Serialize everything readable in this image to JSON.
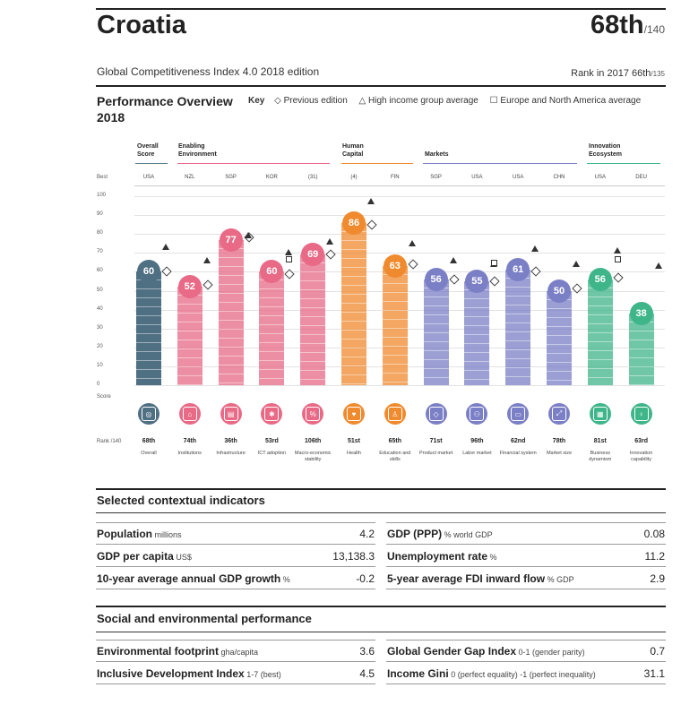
{
  "header": {
    "country": "Croatia",
    "rank": "68th",
    "rank_of": "/140",
    "edition": "Global Competitiveness Index 4.0 2018 edition",
    "prev_rank_label": "Rank in 2017 66th",
    "prev_rank_of": "/135"
  },
  "overview": {
    "title": "Performance Overview 2018",
    "key_label": "Key",
    "key_items": [
      "◇ Previous edition",
      "△ High income group average",
      "☐ Europe and North America average"
    ]
  },
  "groups": [
    {
      "label": "Overall Score",
      "color": "#5a7a8c"
    },
    {
      "label": "Enabling Environment",
      "color": "#e86a86"
    },
    {
      "label": "Human Capital",
      "color": "#f08a2e"
    },
    {
      "label": "Markets",
      "color": "#7b7fc6"
    },
    {
      "label": "Innovation Ecosystem",
      "color": "#3fb58a"
    }
  ],
  "axis": {
    "best_label": "Best",
    "score_label": "Score",
    "rank_label": "Rank /140",
    "ticks": [
      "100",
      "90",
      "80",
      "70",
      "60",
      "50",
      "40",
      "30",
      "20",
      "10",
      "0"
    ]
  },
  "chart_data": {
    "type": "bar",
    "title": "Performance Overview 2018",
    "ylim": [
      0,
      100
    ],
    "ylabel": "Score",
    "categories": [
      "Overall",
      "Institutions",
      "Infrastructure",
      "ICT adoption",
      "Macro-economic stability",
      "Health",
      "Education and skills",
      "Product market",
      "Labor market",
      "Financial system",
      "Market size",
      "Business dynamism",
      "Innovation capability"
    ],
    "best_performer": [
      "USA",
      "NZL",
      "SGP",
      "KOR",
      "(31)",
      "(4)",
      "FIN",
      "SGP",
      "USA",
      "USA",
      "CHN",
      "USA",
      "DEU"
    ],
    "values": [
      60,
      52,
      77,
      60,
      69,
      86,
      63,
      56,
      55,
      61,
      50,
      56,
      38
    ],
    "ranks": [
      "68th",
      "74th",
      "36th",
      "53rd",
      "106th",
      "51st",
      "65th",
      "71st",
      "96th",
      "62nd",
      "78th",
      "81st",
      "63rd"
    ],
    "previous_edition": [
      60,
      53,
      78,
      59,
      69,
      85,
      64,
      56,
      55,
      60,
      51,
      57,
      null
    ],
    "high_income_avg": [
      73,
      66,
      79,
      70,
      76,
      97,
      75,
      66,
      64,
      72,
      64,
      71,
      63
    ],
    "europe_na_avg": [
      null,
      null,
      null,
      67,
      null,
      null,
      null,
      null,
      65,
      null,
      null,
      67,
      null
    ],
    "colors": [
      "#4f6f83",
      "#e86a86",
      "#e86a86",
      "#e86a86",
      "#e86a86",
      "#f08a2e",
      "#f08a2e",
      "#7b7fc6",
      "#7b7fc6",
      "#7b7fc6",
      "#7b7fc6",
      "#3fb58a",
      "#3fb58a"
    ]
  },
  "context": {
    "title": "Selected contextual indicators",
    "rows": [
      {
        "l_label": "Population",
        "l_unit": "millions",
        "l_val": "4.2",
        "r_label": "GDP (PPP)",
        "r_unit": "% world GDP",
        "r_val": "0.08"
      },
      {
        "l_label": "GDP per capita",
        "l_unit": "US$",
        "l_val": "13,138.3",
        "r_label": "Unemployment rate",
        "r_unit": "%",
        "r_val": "11.2"
      },
      {
        "l_label": "10-year average annual GDP growth",
        "l_unit": "%",
        "l_val": "-0.2",
        "r_label": "5-year average FDI inward flow",
        "r_unit": "% GDP",
        "r_val": "2.9"
      }
    ]
  },
  "social": {
    "title": "Social and environmental performance",
    "rows": [
      {
        "l_label": "Environmental footprint",
        "l_unit": "gha/capita",
        "l_val": "3.6",
        "r_label": "Global Gender Gap Index",
        "r_unit": "0-1 (gender parity)",
        "r_val": "0.7"
      },
      {
        "l_label": "Inclusive Development Index",
        "l_unit": "1-7 (best)",
        "l_val": "4.5",
        "r_label": "Income Gini",
        "r_unit": "0 (perfect equality) -1 (perfect inequality)",
        "r_val": "31.1"
      }
    ]
  }
}
